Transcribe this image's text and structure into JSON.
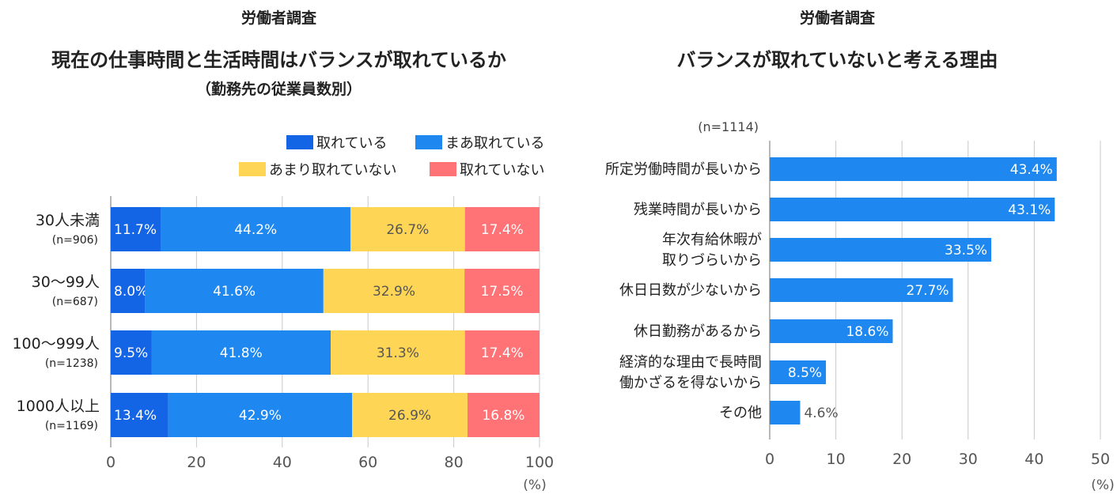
{
  "colors": {
    "taken": "#1464E6",
    "somewhat_taken": "#1E88F0",
    "not_much": "#FFD555",
    "not_taken": "#FF7276",
    "right_bar": "#1E88F0",
    "grid": "#C8C8C8",
    "axis": "#555555"
  },
  "left": {
    "survey_label": "労働者調査",
    "title": "現在の仕事時間と生活時間はバランスが取れているか",
    "subtitle": "（勤務先の従業員数別）",
    "unit_label": "(%)"
  },
  "right": {
    "survey_label": "労働者調査",
    "title": "バランスが取れていないと考える理由",
    "n_label": "(n=1114)",
    "unit_label": "(%)"
  },
  "chart_data": [
    {
      "type": "bar",
      "orientation": "horizontal",
      "stacked": true,
      "title": "現在の仕事時間と生活時間はバランスが取れているか",
      "subtitle": "（勤務先の従業員数別）",
      "categories": [
        "30人未満",
        "30〜99人",
        "100〜999人",
        "1000人以上"
      ],
      "category_n": [
        "(n=906)",
        "(n=687)",
        "(n=1238)",
        "(n=1169)"
      ],
      "series": [
        {
          "name": "取れている",
          "values": [
            11.7,
            8.0,
            9.5,
            13.4
          ],
          "labels": [
            "11.7%",
            "8.0%",
            "9.5%",
            "13.4%"
          ]
        },
        {
          "name": "まあ取れている",
          "values": [
            44.2,
            41.6,
            41.8,
            42.9
          ],
          "labels": [
            "44.2%",
            "41.6%",
            "41.8%",
            "42.9%"
          ]
        },
        {
          "name": "あまり取れていない",
          "values": [
            26.7,
            32.9,
            31.3,
            26.9
          ],
          "labels": [
            "26.7%",
            "32.9%",
            "31.3%",
            "26.9%"
          ]
        },
        {
          "name": "取れていない",
          "values": [
            17.4,
            17.5,
            17.4,
            16.8
          ],
          "labels": [
            "17.4%",
            "17.5%",
            "17.4%",
            "16.8%"
          ]
        }
      ],
      "xlim": [
        0,
        100
      ],
      "xticks": [
        "0",
        "20",
        "40",
        "60",
        "80",
        "100"
      ],
      "xunit": "(%)",
      "grid": true,
      "legend": "top-right"
    },
    {
      "type": "bar",
      "orientation": "horizontal",
      "title": "バランスが取れていないと考える理由",
      "n": "(n=1114)",
      "categories": [
        [
          "所定労働時間が長いから"
        ],
        [
          "残業時間が長いから"
        ],
        [
          "年次有給休暇が",
          "取りづらいから"
        ],
        [
          "休日日数が少ないから"
        ],
        [
          "休日勤務があるから"
        ],
        [
          "経済的な理由で長時間",
          "働かざるを得ないから"
        ],
        [
          "その他"
        ]
      ],
      "values": [
        43.4,
        43.1,
        33.5,
        27.7,
        18.6,
        8.5,
        4.6
      ],
      "labels": [
        "43.4%",
        "43.1%",
        "33.5%",
        "27.7%",
        "18.6%",
        "8.5%",
        "4.6%"
      ],
      "xlim": [
        0,
        50
      ],
      "xticks": [
        "0",
        "10",
        "20",
        "30",
        "40",
        "50"
      ],
      "xunit": "(%)",
      "grid": true
    }
  ]
}
